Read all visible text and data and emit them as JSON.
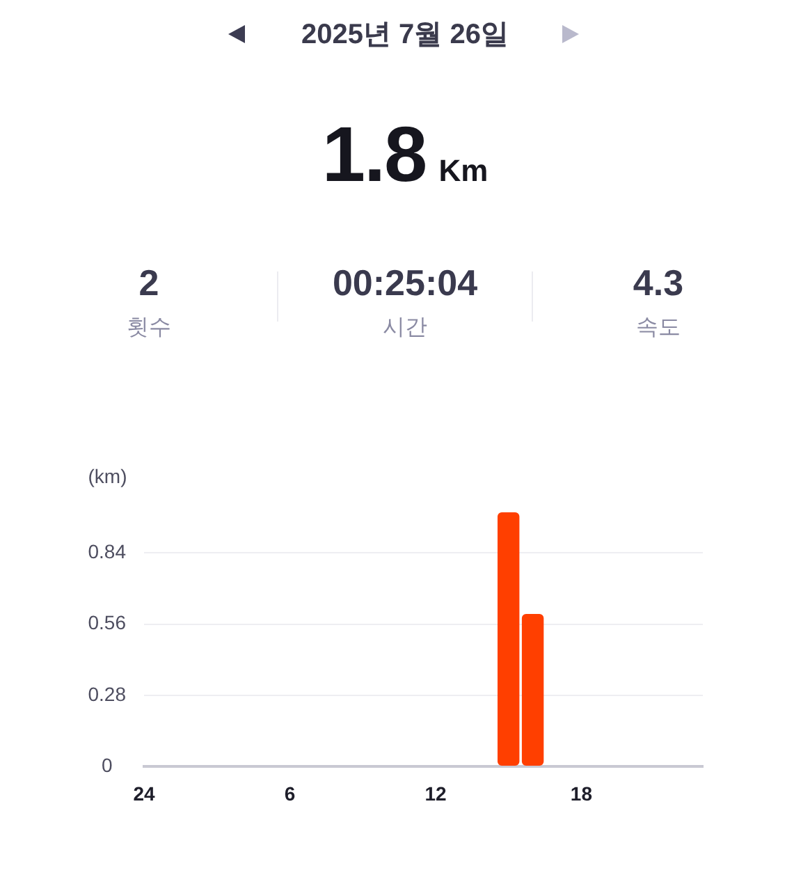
{
  "chart_data": {
    "type": "bar",
    "title": "2025년 7월 26일",
    "annotations": [
      "1.8",
      "Km",
      "2",
      "횟수",
      "00:25:04",
      "시간",
      "4.3",
      "속도"
    ],
    "ylabel": "(km)",
    "categories": [
      "24",
      null,
      null,
      null,
      null,
      null,
      "6",
      null,
      null,
      null,
      null,
      null,
      "12",
      null,
      null,
      null,
      null,
      null,
      "18",
      null,
      null,
      null,
      null,
      null
    ],
    "values": [
      null,
      null,
      null,
      null,
      null,
      null,
      null,
      null,
      null,
      null,
      null,
      null,
      null,
      null,
      null,
      1,
      0.6,
      null,
      null,
      null,
      null,
      null,
      null,
      null
    ],
    "color": "#ff3f00",
    "ylim": [
      0,
      1
    ],
    "yticks": [
      0,
      0.28,
      0.56,
      0.84
    ],
    "grid": "y"
  }
}
